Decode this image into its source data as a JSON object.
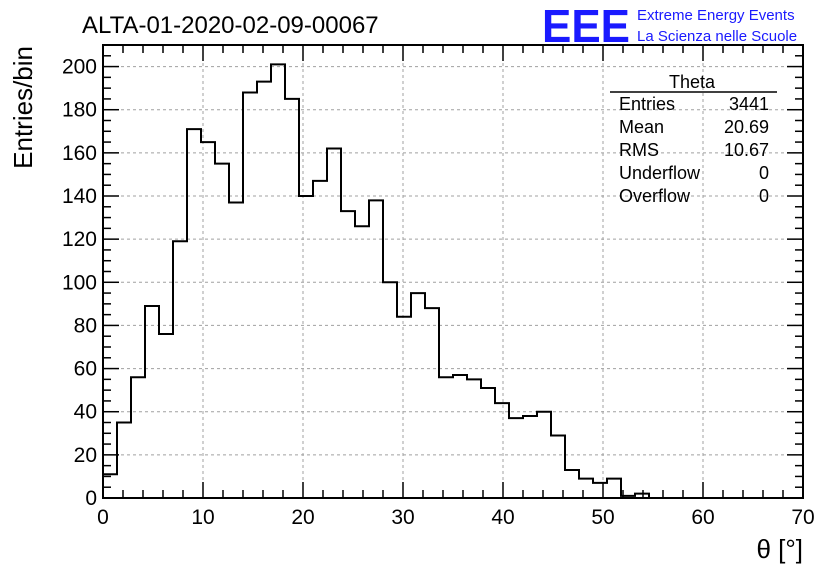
{
  "header": {
    "title": "ALTA-01-2020-02-09-00067",
    "logo_mark": "EEE",
    "logo_line1": "Extreme Energy Events",
    "logo_line2": "La Scienza nelle Scuole",
    "logo_color": "#1a1aff"
  },
  "stats": {
    "name": "Theta",
    "rows": [
      {
        "label": "Entries",
        "value": "3441"
      },
      {
        "label": "Mean",
        "value": "20.69"
      },
      {
        "label": "RMS",
        "value": "10.67"
      },
      {
        "label": "Underflow",
        "value": "0"
      },
      {
        "label": "Overflow",
        "value": "0"
      }
    ]
  },
  "chart_data": {
    "type": "histogram",
    "xlabel": "θ [°]",
    "ylabel": "Entries/bin",
    "xlim": [
      0,
      70
    ],
    "ylim": [
      0,
      210
    ],
    "x_ticks": [
      0,
      10,
      20,
      30,
      40,
      50,
      60,
      70
    ],
    "y_ticks": [
      0,
      20,
      40,
      60,
      80,
      100,
      120,
      140,
      160,
      180,
      200
    ],
    "grid": true,
    "bin_width": 1.4,
    "bin_start": 0,
    "values": [
      11,
      35,
      56,
      89,
      76,
      119,
      171,
      165,
      155,
      137,
      188,
      193,
      201,
      185,
      140,
      147,
      162,
      133,
      126,
      138,
      100,
      84,
      95,
      88,
      56,
      57,
      55,
      51,
      44,
      37,
      38,
      40,
      29,
      13,
      9,
      7,
      9,
      1,
      2,
      0
    ]
  }
}
